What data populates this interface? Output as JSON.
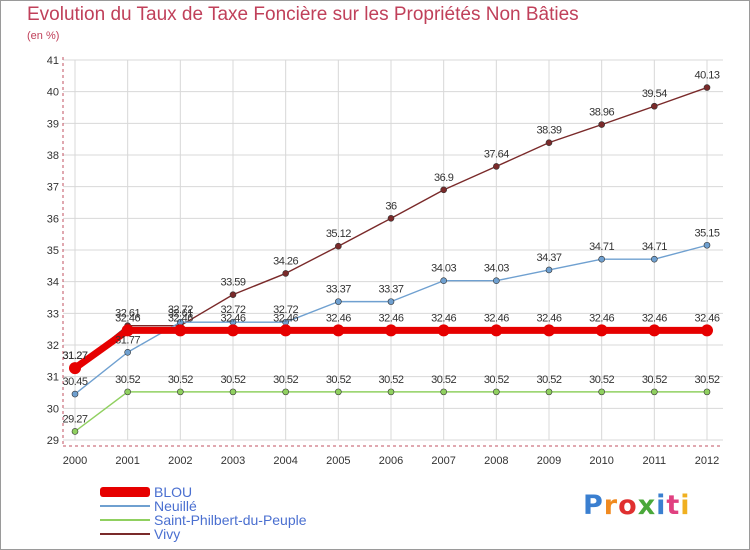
{
  "title": "Evolution du Taux de Taxe Foncière sur les Propriétés Non Bâties",
  "subtitle": "(en %)",
  "logo": "Proxiti",
  "chart_data": {
    "type": "line",
    "title": "Evolution du Taux de Taxe Foncière sur les Propriétés Non Bâties",
    "ylabel": "(en %)",
    "xlabel": "",
    "ylim": [
      29,
      41
    ],
    "yticks": [
      29,
      30,
      31,
      32,
      33,
      34,
      35,
      36,
      37,
      38,
      39,
      40,
      41
    ],
    "categories": [
      "2000",
      "2001",
      "2002",
      "2003",
      "2004",
      "2005",
      "2006",
      "2007",
      "2008",
      "2009",
      "2010",
      "2011",
      "2012"
    ],
    "grid": true,
    "series": [
      {
        "name": "BLOU",
        "color": "#e60000",
        "values": [
          31.27,
          32.46,
          32.46,
          32.46,
          32.46,
          32.46,
          32.46,
          32.46,
          32.46,
          32.46,
          32.46,
          32.46,
          32.46
        ]
      },
      {
        "name": "Neuillé",
        "color": "#6fa0d0",
        "values": [
          30.45,
          31.77,
          32.72,
          32.72,
          32.72,
          33.37,
          33.37,
          34.03,
          34.03,
          34.37,
          34.71,
          34.71,
          35.15
        ]
      },
      {
        "name": "Saint-Philbert-du-Peuple",
        "color": "#90d060",
        "values": [
          29.27,
          30.52,
          30.52,
          30.52,
          30.52,
          30.52,
          30.52,
          30.52,
          30.52,
          30.52,
          30.52,
          30.52,
          30.52
        ]
      },
      {
        "name": "Vivy",
        "color": "#7a2a2a",
        "values": [
          31.27,
          32.61,
          32.61,
          33.59,
          34.26,
          35.12,
          36,
          36.9,
          37.64,
          38.39,
          38.96,
          39.54,
          40.13
        ]
      }
    ],
    "label_order": [
      "Vivy",
      "Neuillé",
      "BLOU",
      "Saint-Philbert-du-Peuple"
    ],
    "labels": {
      "Vivy": [
        "31.27",
        "32.61",
        "32.61",
        "33.59",
        "34.26",
        "35.12",
        "36",
        "36.9",
        "37.64",
        "38.39",
        "38.96",
        "39.54",
        "40.13"
      ],
      "Neuillé": [
        "30.45",
        "31.77",
        "32.72",
        "32.72",
        "32.72",
        "33.37",
        "33.37",
        "34.03",
        "34.03",
        "34.37",
        "34.71",
        "34.71",
        "35.15"
      ],
      "BLOU": [
        "31.27",
        "32.46",
        "32.46",
        "32.46",
        "32.46",
        "32.46",
        "32.46",
        "32.46",
        "32.46",
        "32.46",
        "32.46",
        "32.46",
        "32.46"
      ],
      "Saint-Philbert-du-Peuple": [
        "29.27",
        "30.52",
        "30.52",
        "30.52",
        "30.52",
        "30.52",
        "30.52",
        "30.52",
        "30.52",
        "30.52",
        "30.52",
        "30.52",
        "30.52"
      ]
    },
    "legend": "bottom-left"
  }
}
